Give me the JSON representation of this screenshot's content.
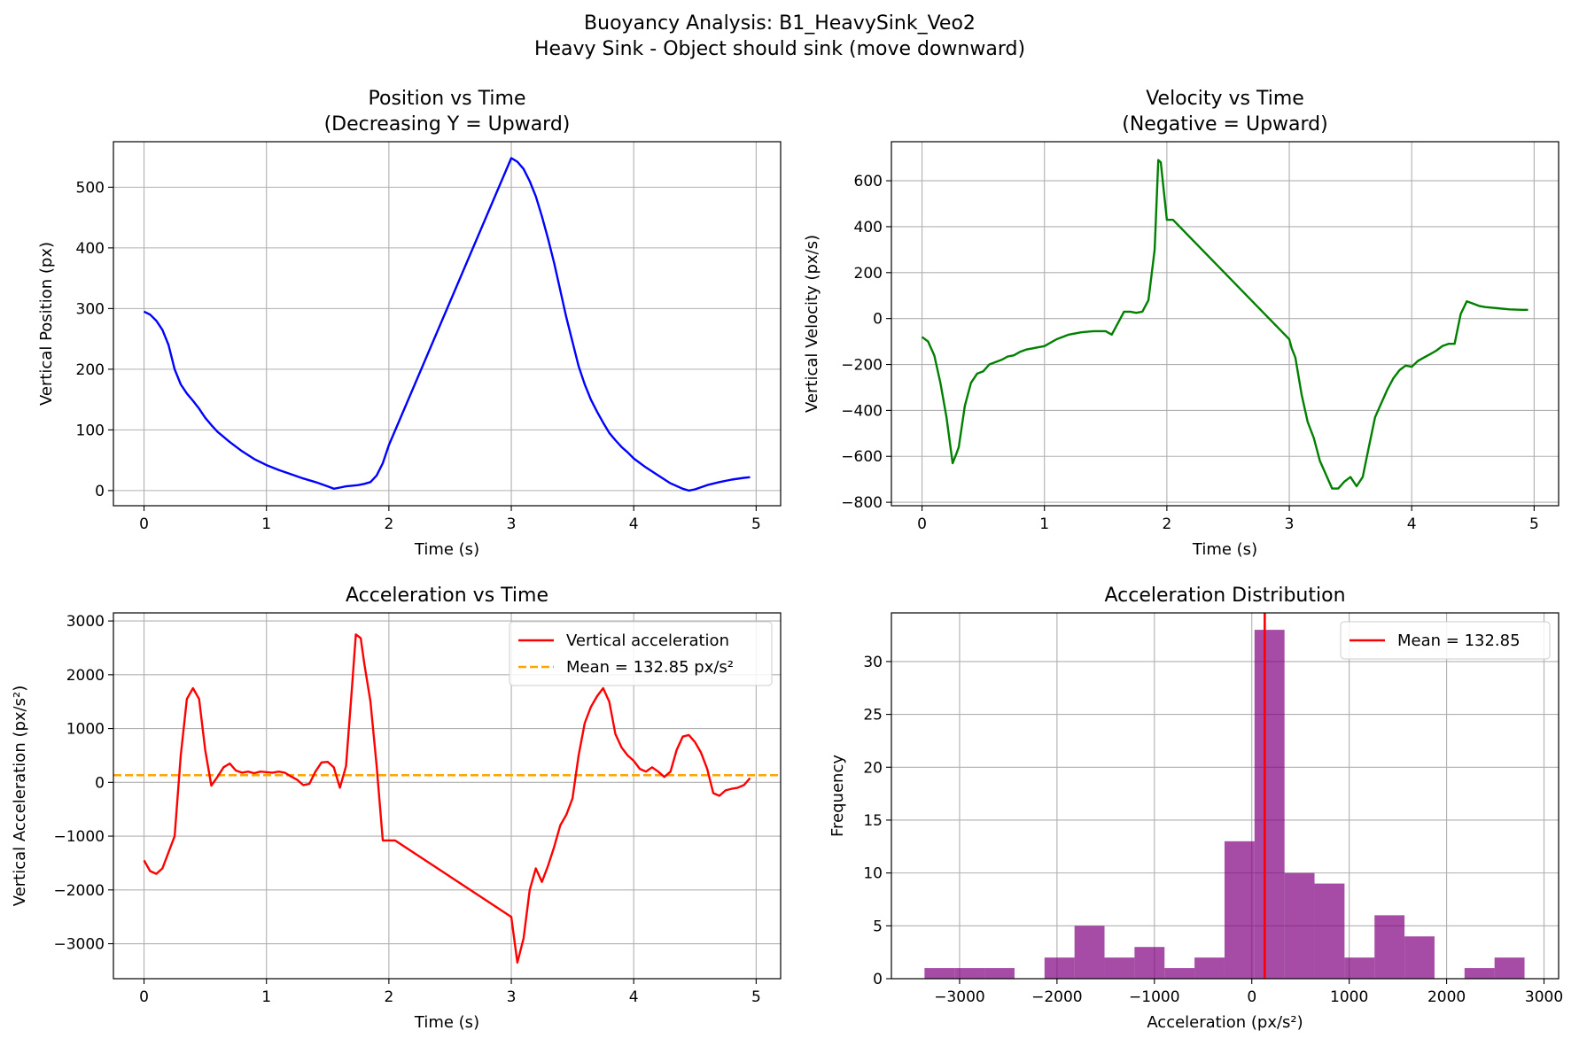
{
  "figure": {
    "title_line1": "Buoyancy Analysis: B1_HeavySink_Veo2",
    "title_line2": "Heavy Sink - Object should sink (move downward)"
  },
  "chart_data": [
    {
      "id": "position",
      "type": "line",
      "title_line1": "Position vs Time",
      "title_line2": "(Decreasing Y = Upward)",
      "xlabel": "Time (s)",
      "ylabel": "Vertical Position (px)",
      "xlim": [
        -0.25,
        5.2
      ],
      "ylim": [
        -25,
        575
      ],
      "xticks": [
        0,
        1,
        2,
        3,
        4,
        5
      ],
      "yticks": [
        0,
        100,
        200,
        300,
        400,
        500
      ],
      "grid": true,
      "series": [
        {
          "name": "Vertical position",
          "color": "#0000ff",
          "x": [
            0,
            0.05,
            0.1,
            0.15,
            0.2,
            0.25,
            0.3,
            0.35,
            0.4,
            0.45,
            0.5,
            0.55,
            0.6,
            0.7,
            0.8,
            0.9,
            1.0,
            1.1,
            1.2,
            1.3,
            1.4,
            1.5,
            1.55,
            1.6,
            1.65,
            1.7,
            1.75,
            1.8,
            1.85,
            1.9,
            1.95,
            2.0,
            3.0,
            3.05,
            3.1,
            3.15,
            3.2,
            3.25,
            3.3,
            3.35,
            3.4,
            3.45,
            3.5,
            3.55,
            3.6,
            3.65,
            3.7,
            3.75,
            3.8,
            3.85,
            3.9,
            3.95,
            4.0,
            4.1,
            4.2,
            4.3,
            4.4,
            4.45,
            4.5,
            4.6,
            4.7,
            4.8,
            4.9,
            4.95
          ],
          "y": [
            295,
            290,
            280,
            265,
            240,
            200,
            175,
            160,
            148,
            135,
            120,
            108,
            97,
            80,
            65,
            52,
            42,
            34,
            27,
            20,
            14,
            7,
            3,
            5,
            7,
            8,
            9,
            11,
            14,
            25,
            45,
            75,
            548,
            542,
            530,
            510,
            485,
            452,
            415,
            375,
            330,
            285,
            245,
            205,
            175,
            150,
            130,
            112,
            95,
            83,
            72,
            63,
            53,
            38,
            25,
            12,
            3,
            0,
            2,
            9,
            14,
            18,
            21,
            22
          ]
        }
      ]
    },
    {
      "id": "velocity",
      "type": "line",
      "title_line1": "Velocity vs Time",
      "title_line2": "(Negative = Upward)",
      "xlabel": "Time (s)",
      "ylabel": "Vertical Velocity (px/s)",
      "xlim": [
        -0.25,
        5.2
      ],
      "ylim": [
        -815,
        770
      ],
      "xticks": [
        0,
        1,
        2,
        3,
        4,
        5
      ],
      "yticks": [
        -800,
        -600,
        -400,
        -200,
        0,
        200,
        400,
        600
      ],
      "grid": true,
      "series": [
        {
          "name": "Vertical velocity",
          "color": "#008000",
          "x": [
            0,
            0.05,
            0.1,
            0.15,
            0.2,
            0.25,
            0.28,
            0.3,
            0.35,
            0.4,
            0.45,
            0.5,
            0.55,
            0.6,
            0.65,
            0.7,
            0.75,
            0.8,
            0.85,
            0.9,
            0.95,
            1.0,
            1.1,
            1.2,
            1.3,
            1.4,
            1.5,
            1.55,
            1.6,
            1.65,
            1.7,
            1.75,
            1.8,
            1.85,
            1.9,
            1.93,
            1.95,
            2.0,
            2.05,
            3.0,
            3.02,
            3.05,
            3.1,
            3.15,
            3.2,
            3.25,
            3.3,
            3.35,
            3.4,
            3.45,
            3.5,
            3.55,
            3.6,
            3.65,
            3.7,
            3.75,
            3.8,
            3.85,
            3.9,
            3.95,
            4.0,
            4.05,
            4.1,
            4.15,
            4.2,
            4.25,
            4.3,
            4.35,
            4.4,
            4.45,
            4.5,
            4.55,
            4.6,
            4.7,
            4.8,
            4.9,
            4.95
          ],
          "y": [
            -80,
            -100,
            -160,
            -280,
            -430,
            -630,
            -590,
            -560,
            -380,
            -280,
            -240,
            -230,
            -200,
            -190,
            -180,
            -165,
            -160,
            -145,
            -135,
            -130,
            -125,
            -120,
            -90,
            -70,
            -60,
            -55,
            -55,
            -70,
            -20,
            30,
            30,
            25,
            30,
            80,
            300,
            690,
            680,
            430,
            430,
            -90,
            -130,
            -170,
            -330,
            -450,
            -520,
            -620,
            -680,
            -740,
            -740,
            -710,
            -690,
            -730,
            -690,
            -560,
            -430,
            -370,
            -310,
            -260,
            -225,
            -205,
            -210,
            -185,
            -170,
            -155,
            -140,
            -120,
            -110,
            -110,
            20,
            75,
            65,
            55,
            50,
            45,
            40,
            38,
            38
          ]
        }
      ]
    },
    {
      "id": "acceleration",
      "type": "line",
      "title_line1": "Acceleration vs Time",
      "title_line2": "",
      "xlabel": "Time (s)",
      "ylabel": "Vertical Acceleration (px/s²)",
      "xlim": [
        -0.25,
        5.2
      ],
      "ylim": [
        -3650,
        3150
      ],
      "xticks": [
        0,
        1,
        2,
        3,
        4,
        5
      ],
      "yticks": [
        -3000,
        -2000,
        -1000,
        0,
        1000,
        2000,
        3000
      ],
      "grid": true,
      "legend": {
        "location": "top-right",
        "entries": [
          {
            "label": "Vertical acceleration",
            "color": "#ff0000",
            "style": "solid"
          },
          {
            "label": "Mean = 132.85 px/s²",
            "color": "#ffa500",
            "style": "dashed"
          }
        ]
      },
      "mean_line": {
        "value": 132.85,
        "color": "#ffa500"
      },
      "series": [
        {
          "name": "Vertical acceleration",
          "color": "#ff0000",
          "x": [
            0,
            0.05,
            0.1,
            0.15,
            0.2,
            0.25,
            0.3,
            0.35,
            0.4,
            0.45,
            0.5,
            0.55,
            0.6,
            0.65,
            0.7,
            0.75,
            0.8,
            0.85,
            0.9,
            0.95,
            1.0,
            1.05,
            1.1,
            1.15,
            1.2,
            1.25,
            1.3,
            1.35,
            1.4,
            1.45,
            1.5,
            1.55,
            1.6,
            1.65,
            1.7,
            1.73,
            1.77,
            1.8,
            1.85,
            1.9,
            1.95,
            2.0,
            2.05,
            3.0,
            3.05,
            3.1,
            3.15,
            3.2,
            3.25,
            3.3,
            3.35,
            3.4,
            3.45,
            3.5,
            3.55,
            3.6,
            3.65,
            3.7,
            3.75,
            3.8,
            3.85,
            3.9,
            3.95,
            4.0,
            4.05,
            4.1,
            4.15,
            4.2,
            4.25,
            4.3,
            4.35,
            4.4,
            4.45,
            4.5,
            4.55,
            4.6,
            4.65,
            4.7,
            4.75,
            4.8,
            4.85,
            4.9,
            4.95
          ],
          "y": [
            -1450,
            -1650,
            -1700,
            -1600,
            -1300,
            -1000,
            500,
            1550,
            1750,
            1550,
            600,
            -60,
            100,
            280,
            350,
            220,
            180,
            200,
            170,
            200,
            190,
            180,
            200,
            180,
            110,
            50,
            -50,
            -30,
            200,
            370,
            380,
            280,
            -100,
            300,
            1800,
            2750,
            2680,
            2200,
            1500,
            300,
            -1080,
            -1080,
            -1080,
            -2500,
            -3350,
            -2900,
            -2000,
            -1600,
            -1850,
            -1550,
            -1200,
            -800,
            -600,
            -300,
            500,
            1100,
            1400,
            1600,
            1750,
            1500,
            900,
            650,
            500,
            400,
            250,
            200,
            280,
            200,
            100,
            200,
            600,
            850,
            880,
            750,
            550,
            250,
            -200,
            -250,
            -150,
            -120,
            -100,
            -50,
            80
          ]
        }
      ]
    },
    {
      "id": "distribution",
      "type": "histogram",
      "title_line1": "Acceleration Distribution",
      "title_line2": "",
      "xlabel": "Acceleration (px/s²)",
      "ylabel": "Frequency",
      "xlim": [
        -3700,
        3150
      ],
      "ylim": [
        0,
        34.6
      ],
      "xticks": [
        -3000,
        -2000,
        -1000,
        0,
        1000,
        2000,
        3000
      ],
      "yticks": [
        0,
        5,
        10,
        15,
        20,
        25,
        30
      ],
      "grid": true,
      "bar_color": "#800080",
      "legend": {
        "location": "top-right",
        "entries": [
          {
            "label": "Mean = 132.85",
            "color": "#ff0000",
            "style": "solid"
          }
        ]
      },
      "mean_line": {
        "value": 132.85,
        "color": "#ff0000"
      },
      "bins": [
        {
          "from": -3360,
          "to": -3052,
          "count": 1
        },
        {
          "from": -3052,
          "to": -2744,
          "count": 1
        },
        {
          "from": -2744,
          "to": -2436,
          "count": 1
        },
        {
          "from": -2436,
          "to": -2128,
          "count": 0
        },
        {
          "from": -2128,
          "to": -1820,
          "count": 2
        },
        {
          "from": -1820,
          "to": -1512,
          "count": 5
        },
        {
          "from": -1512,
          "to": -1204,
          "count": 2
        },
        {
          "from": -1204,
          "to": -896,
          "count": 3
        },
        {
          "from": -896,
          "to": -588,
          "count": 1
        },
        {
          "from": -588,
          "to": -280,
          "count": 2
        },
        {
          "from": -280,
          "to": 28,
          "count": 13
        },
        {
          "from": 28,
          "to": 336,
          "count": 33
        },
        {
          "from": 336,
          "to": 644,
          "count": 10
        },
        {
          "from": 644,
          "to": 952,
          "count": 9
        },
        {
          "from": 952,
          "to": 1260,
          "count": 2
        },
        {
          "from": 1260,
          "to": 1568,
          "count": 6
        },
        {
          "from": 1568,
          "to": 1876,
          "count": 4
        },
        {
          "from": 1876,
          "to": 2184,
          "count": 0
        },
        {
          "from": 2184,
          "to": 2492,
          "count": 1
        },
        {
          "from": 2492,
          "to": 2800,
          "count": 2
        }
      ]
    }
  ]
}
